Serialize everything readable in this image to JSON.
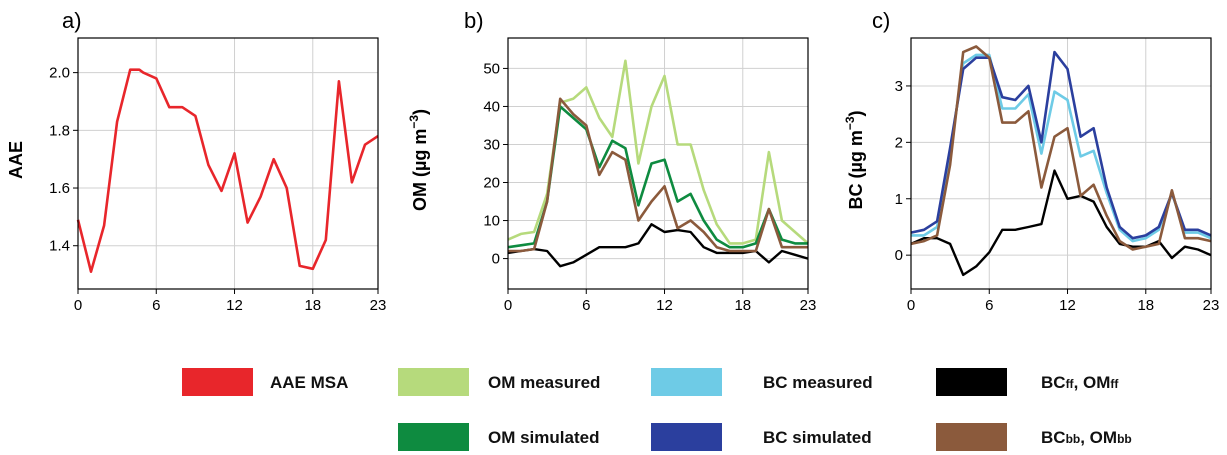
{
  "chart_data": [
    {
      "type": "line",
      "panel": "a)",
      "title": "",
      "xlabel": "",
      "ylabel": "AAE",
      "xlim": [
        0,
        23
      ],
      "ylim": [
        1.25,
        2.12
      ],
      "xticks": [
        "0",
        "6",
        "12",
        "18",
        "23"
      ],
      "yticks": [
        "1.4",
        "1.6",
        "1.8",
        "2.0"
      ],
      "ytick_values": [
        1.4,
        1.6,
        1.8,
        2.0
      ],
      "grid": true,
      "x": [
        0,
        1,
        2,
        3,
        4,
        4.7,
        5,
        6,
        7,
        8,
        9,
        10,
        11,
        12,
        13,
        14,
        15,
        16,
        17,
        18,
        19,
        20,
        21,
        22,
        23
      ],
      "series": [
        {
          "name": "AAE MSA",
          "color": "#e8262b",
          "values": [
            1.49,
            1.31,
            1.47,
            1.83,
            2.01,
            2.01,
            2.0,
            1.98,
            1.88,
            1.88,
            1.85,
            1.68,
            1.59,
            1.72,
            1.48,
            1.57,
            1.7,
            1.6,
            1.33,
            1.32,
            1.42,
            1.97,
            1.62,
            1.75,
            1.78
          ]
        }
      ]
    },
    {
      "type": "line",
      "panel": "b)",
      "title": "",
      "xlabel": "",
      "ylabel": "OM (µg m⁻³)",
      "xlim": [
        0,
        23
      ],
      "ylim": [
        -8,
        58
      ],
      "xticks": [
        "0",
        "6",
        "12",
        "18",
        "23"
      ],
      "yticks": [
        "0",
        "10",
        "20",
        "30",
        "40",
        "50"
      ],
      "ytick_values": [
        0,
        10,
        20,
        30,
        40,
        50
      ],
      "grid": true,
      "x": [
        0,
        1,
        2,
        3,
        4,
        5,
        6,
        7,
        8,
        9,
        10,
        11,
        12,
        13,
        14,
        15,
        16,
        17,
        18,
        19,
        20,
        21,
        22,
        23
      ],
      "series": [
        {
          "name": "OM measured",
          "color": "#b6da7c",
          "values": [
            5,
            6.5,
            7,
            17,
            41,
            42,
            45,
            37,
            32,
            52,
            25,
            40,
            48,
            30,
            30,
            18,
            9,
            4,
            4,
            5,
            28,
            10,
            7,
            4
          ]
        },
        {
          "name": "OM simulated",
          "color": "#0e8b40",
          "values": [
            3,
            3.5,
            4,
            15,
            40,
            37,
            34,
            24,
            31,
            29,
            14,
            25,
            26,
            15,
            17,
            10,
            5,
            3,
            3,
            4,
            13,
            5,
            4,
            4
          ]
        },
        {
          "name": "BCff, OMff",
          "color": "#000000",
          "values": [
            1.5,
            2,
            2.5,
            2,
            -2,
            -1,
            1,
            3,
            3,
            3,
            4,
            9,
            7,
            7.5,
            7,
            3,
            1.5,
            1.5,
            1.5,
            2,
            -1,
            2,
            1,
            0
          ]
        },
        {
          "name": "BCbb, OMbb",
          "color": "#8b5a3c",
          "values": [
            2,
            2,
            2.5,
            15,
            42,
            38,
            35,
            22,
            28,
            26,
            10,
            15,
            19,
            8,
            10,
            7,
            3,
            2,
            2,
            2,
            13,
            3,
            3,
            3
          ]
        }
      ]
    },
    {
      "type": "line",
      "panel": "c)",
      "title": "",
      "xlabel": "",
      "ylabel": "BC (µg m⁻³)",
      "xlim": [
        0,
        23
      ],
      "ylim": [
        -0.6,
        3.85
      ],
      "xticks": [
        "0",
        "6",
        "12",
        "18",
        "23"
      ],
      "yticks": [
        "0",
        "1",
        "2",
        "3"
      ],
      "ytick_values": [
        0,
        1,
        2,
        3
      ],
      "grid": true,
      "x": [
        0,
        1,
        2,
        3,
        4,
        5,
        6,
        7,
        8,
        9,
        10,
        11,
        12,
        13,
        14,
        15,
        16,
        17,
        18,
        19,
        20,
        21,
        22,
        23
      ],
      "series": [
        {
          "name": "BC measured",
          "color": "#6ecbe6",
          "values": [
            0.35,
            0.35,
            0.5,
            1.8,
            3.4,
            3.55,
            3.55,
            2.6,
            2.6,
            2.85,
            1.8,
            2.9,
            2.75,
            1.75,
            1.85,
            1.1,
            0.45,
            0.25,
            0.3,
            0.45,
            1.1,
            0.4,
            0.4,
            0.3
          ]
        },
        {
          "name": "BC simulated",
          "color": "#2b3f9e",
          "values": [
            0.4,
            0.45,
            0.6,
            1.9,
            3.3,
            3.5,
            3.5,
            2.8,
            2.75,
            3.0,
            2.0,
            3.6,
            3.3,
            2.1,
            2.25,
            1.2,
            0.5,
            0.3,
            0.35,
            0.5,
            1.1,
            0.45,
            0.45,
            0.35
          ]
        },
        {
          "name": "BCff, OMff",
          "color": "#000000",
          "values": [
            0.2,
            0.3,
            0.3,
            0.2,
            -0.35,
            -0.2,
            0.05,
            0.45,
            0.45,
            0.5,
            0.55,
            1.5,
            1.0,
            1.05,
            0.95,
            0.5,
            0.2,
            0.15,
            0.15,
            0.25,
            -0.05,
            0.15,
            0.1,
            0.0
          ]
        },
        {
          "name": "BCbb, OMbb",
          "color": "#8b5a3c",
          "values": [
            0.2,
            0.25,
            0.35,
            1.6,
            3.6,
            3.7,
            3.5,
            2.35,
            2.35,
            2.55,
            1.2,
            2.1,
            2.25,
            1.05,
            1.25,
            0.7,
            0.25,
            0.1,
            0.15,
            0.2,
            1.15,
            0.3,
            0.3,
            0.25
          ]
        }
      ]
    }
  ],
  "legend": [
    {
      "label": "AAE MSA",
      "color": "#e8262b"
    },
    {
      "label": "OM measured",
      "color": "#b6da7c"
    },
    {
      "label": "BC measured",
      "color": "#6ecbe6"
    },
    {
      "label": "BCff, OMff",
      "color": "#000000",
      "base1": "BC",
      "sub1": "ff",
      "base2": ", OM",
      "sub2": "ff"
    },
    {
      "label": "OM simulated",
      "color": "#0e8b40"
    },
    {
      "label": "BC simulated",
      "color": "#2b3f9e"
    },
    {
      "label": "BCbb, OMbb",
      "color": "#8b5a3c",
      "base1": "BC",
      "sub1": "bb",
      "base2": ", OM",
      "sub2": "bb"
    }
  ]
}
